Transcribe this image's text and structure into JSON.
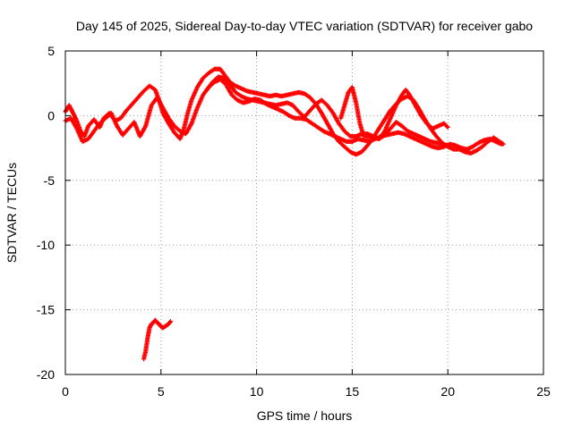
{
  "chart_data": {
    "type": "scatter",
    "title": "Day 145 of 2025, Sidereal Day-to-day VTEC variation (SDTVAR) for receiver gabo",
    "xlabel": "GPS time / hours",
    "ylabel": "SDTVAR / TECUs",
    "xlim": [
      0,
      25
    ],
    "ylim": [
      -20,
      5
    ],
    "x_ticks": [
      0,
      5,
      10,
      15,
      20,
      25
    ],
    "y_ticks": [
      5,
      0,
      -5,
      -10,
      -15,
      -20
    ],
    "x_tick_labels": [
      "0",
      "5",
      "10",
      "15",
      "20",
      "25"
    ],
    "y_tick_labels": [
      "5",
      "0",
      "-5",
      "-10",
      "-15",
      "-20"
    ],
    "grid": true,
    "legend": "none",
    "marker": "plus",
    "color": "#ff0000",
    "series": [
      {
        "name": "track-main-upper",
        "x": [
          0.0,
          0.2,
          0.4,
          0.6,
          0.8,
          1.0,
          1.2,
          1.5,
          1.8,
          2.0,
          2.3,
          2.6,
          2.9,
          3.2,
          3.5,
          3.8,
          4.1,
          4.4,
          4.7,
          4.9,
          5.1,
          5.4,
          5.7,
          6.0,
          6.2,
          6.4,
          6.6,
          6.9,
          7.2,
          7.5,
          7.8,
          8.1,
          8.3,
          8.6,
          8.9,
          9.2,
          9.5,
          9.8,
          10.1,
          10.4,
          10.7,
          11.0,
          11.3,
          11.6,
          11.9,
          12.2,
          12.5,
          12.8,
          13.1,
          13.4,
          13.7,
          14.0,
          14.3,
          14.6,
          14.9,
          15.2,
          15.5,
          15.8,
          16.1,
          16.4,
          16.7,
          17.0,
          17.3,
          17.6,
          17.9,
          18.2,
          18.5,
          18.8,
          19.1,
          19.4,
          19.7,
          20.0,
          20.3,
          20.6,
          20.9,
          21.2,
          21.5,
          21.8,
          22.1,
          22.4,
          22.7,
          22.9
        ],
        "y": [
          0.3,
          0.8,
          0.2,
          -0.4,
          -1.2,
          -1.6,
          -0.8,
          -0.3,
          -0.9,
          -0.2,
          0.2,
          -0.4,
          -0.2,
          0.4,
          0.9,
          1.4,
          1.9,
          2.3,
          2.0,
          1.2,
          0.2,
          -0.6,
          -1.3,
          -1.8,
          -1.0,
          0.2,
          1.2,
          2.2,
          2.9,
          3.3,
          3.6,
          3.6,
          3.2,
          2.6,
          2.3,
          2.1,
          1.9,
          1.8,
          1.7,
          1.6,
          1.5,
          1.6,
          1.5,
          1.6,
          1.7,
          1.8,
          1.7,
          1.4,
          0.9,
          0.2,
          -0.6,
          -1.4,
          -2.0,
          -2.4,
          -2.8,
          -3.0,
          -2.8,
          -2.3,
          -1.7,
          -1.0,
          -0.3,
          0.4,
          0.9,
          1.3,
          1.5,
          1.2,
          0.5,
          -0.3,
          -1.0,
          -1.6,
          -2.1,
          -2.4,
          -2.6,
          -2.6,
          -2.8,
          -2.9,
          -2.7,
          -2.4,
          -2.0,
          -1.7,
          -2.0,
          -2.2
        ]
      },
      {
        "name": "track-main-lower",
        "x": [
          0.0,
          0.3,
          0.6,
          0.9,
          1.2,
          1.5,
          1.8,
          2.1,
          2.4,
          2.7,
          3.0,
          3.3,
          3.6,
          3.9,
          4.2,
          4.5,
          4.8,
          5.1,
          5.4,
          5.7,
          6.0,
          6.3,
          6.6,
          6.9,
          7.2,
          7.5,
          7.8,
          8.1,
          8.4,
          8.7,
          9.0,
          9.3,
          9.6,
          9.9,
          10.2,
          10.5,
          10.8,
          11.1,
          11.4,
          11.7,
          12.0,
          12.3,
          12.6,
          12.9,
          13.2,
          13.5,
          13.8,
          14.1,
          14.4,
          14.7,
          15.0,
          15.3,
          15.6,
          15.9,
          16.2,
          16.5,
          16.8,
          17.1,
          17.4,
          17.7,
          18.0,
          18.3,
          18.6,
          18.9,
          19.2,
          19.5,
          19.8,
          20.1,
          20.4,
          20.7,
          21.0,
          21.3,
          21.6,
          21.9,
          22.2,
          22.5,
          22.8
        ],
        "y": [
          -0.4,
          -0.2,
          -1.0,
          -2.0,
          -1.8,
          -1.2,
          -0.6,
          -0.2,
          0.2,
          -0.8,
          -1.5,
          -1.0,
          -0.5,
          -1.6,
          -0.8,
          0.8,
          1.4,
          0.6,
          -0.2,
          -0.8,
          -1.2,
          -1.4,
          -0.6,
          0.6,
          1.6,
          2.2,
          2.6,
          2.8,
          2.4,
          1.6,
          1.2,
          1.0,
          1.1,
          1.3,
          1.2,
          0.9,
          0.7,
          0.5,
          0.3,
          0.0,
          -0.2,
          -0.2,
          -0.3,
          -0.6,
          -0.9,
          -1.2,
          -1.4,
          -1.6,
          -1.8,
          -2.0,
          -2.0,
          -1.8,
          -1.9,
          -2.0,
          -1.8,
          -1.6,
          -1.5,
          -1.4,
          -1.3,
          -1.4,
          -1.6,
          -1.8,
          -2.0,
          -2.2,
          -2.4,
          -2.5,
          -2.4,
          -2.2,
          -2.3,
          -2.5,
          -2.6,
          -2.4,
          -2.1,
          -1.9,
          -1.8,
          -2.0,
          -2.2
        ]
      },
      {
        "name": "track-middle",
        "x": [
          7.4,
          7.7,
          8.0,
          8.3,
          8.6,
          8.9,
          9.2,
          9.5,
          9.8,
          10.1,
          10.4,
          10.7,
          11.0,
          11.3,
          11.6,
          11.9,
          12.2,
          12.5,
          12.8,
          13.1,
          13.4,
          13.7,
          14.0,
          14.3,
          14.6,
          14.9,
          15.2,
          15.5,
          15.8,
          16.1,
          16.4,
          16.7,
          17.0,
          17.3,
          17.6,
          17.9,
          18.2,
          18.5,
          18.8,
          19.1,
          19.4,
          19.7,
          20.0
        ],
        "y": [
          2.0,
          2.6,
          3.0,
          2.9,
          2.4,
          1.8,
          1.5,
          1.3,
          1.2,
          1.1,
          1.0,
          0.9,
          0.8,
          0.9,
          1.0,
          0.8,
          0.3,
          -0.1,
          0.4,
          0.9,
          1.2,
          0.8,
          0.2,
          -0.6,
          -1.2,
          -1.6,
          -1.6,
          -1.4,
          -1.4,
          -1.6,
          -1.8,
          -1.5,
          -1.0,
          -0.5,
          -0.8,
          -1.2,
          -1.4,
          -1.6,
          -1.8,
          -2.0,
          -2.1,
          -2.2,
          -2.3
        ]
      },
      {
        "name": "track-spikes",
        "x": [
          14.4,
          14.6,
          14.8,
          15.0,
          15.2,
          15.4,
          15.6,
          16.4,
          16.7,
          17.0,
          17.3,
          17.6,
          17.8,
          18.0,
          18.3,
          18.6,
          18.9,
          19.2,
          19.5,
          19.8,
          20.0
        ],
        "y": [
          -0.2,
          0.8,
          1.8,
          2.2,
          1.0,
          -0.6,
          -1.6,
          -1.8,
          -1.2,
          -0.2,
          0.8,
          1.6,
          2.0,
          1.6,
          0.8,
          0.0,
          -0.6,
          -1.0,
          -0.8,
          -0.6,
          -0.9
        ]
      },
      {
        "name": "track-isolated",
        "x": [
          4.1,
          4.2,
          4.3,
          4.4,
          4.5,
          4.6,
          4.7,
          4.8,
          4.9,
          5.0,
          5.1,
          5.2,
          5.3,
          5.4,
          5.5
        ],
        "y": [
          -18.8,
          -18.2,
          -17.2,
          -16.4,
          -16.1,
          -16.0,
          -15.8,
          -16.0,
          -16.1,
          -16.3,
          -16.4,
          -16.3,
          -16.2,
          -16.1,
          -15.9
        ]
      }
    ]
  }
}
